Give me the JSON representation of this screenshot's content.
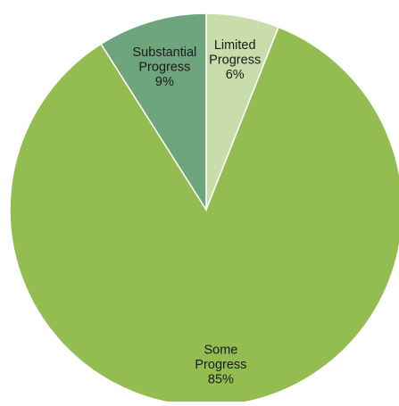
{
  "chart_data": {
    "type": "pie",
    "categories": [
      "Limited Progress",
      "Some Progress",
      "Substantial Progress"
    ],
    "values": [
      6,
      85,
      9
    ],
    "value_labels": [
      "6%",
      "85%",
      "9%"
    ],
    "label_lines": [
      [
        "Limited",
        "Progress",
        "6%"
      ],
      [
        "Some",
        "Progress",
        "85%"
      ],
      [
        "Substantial",
        "Progress",
        "9%"
      ]
    ],
    "colors": [
      "#c9dcab",
      "#93bc51",
      "#6ea57c"
    ],
    "title": "",
    "legend": "none"
  }
}
